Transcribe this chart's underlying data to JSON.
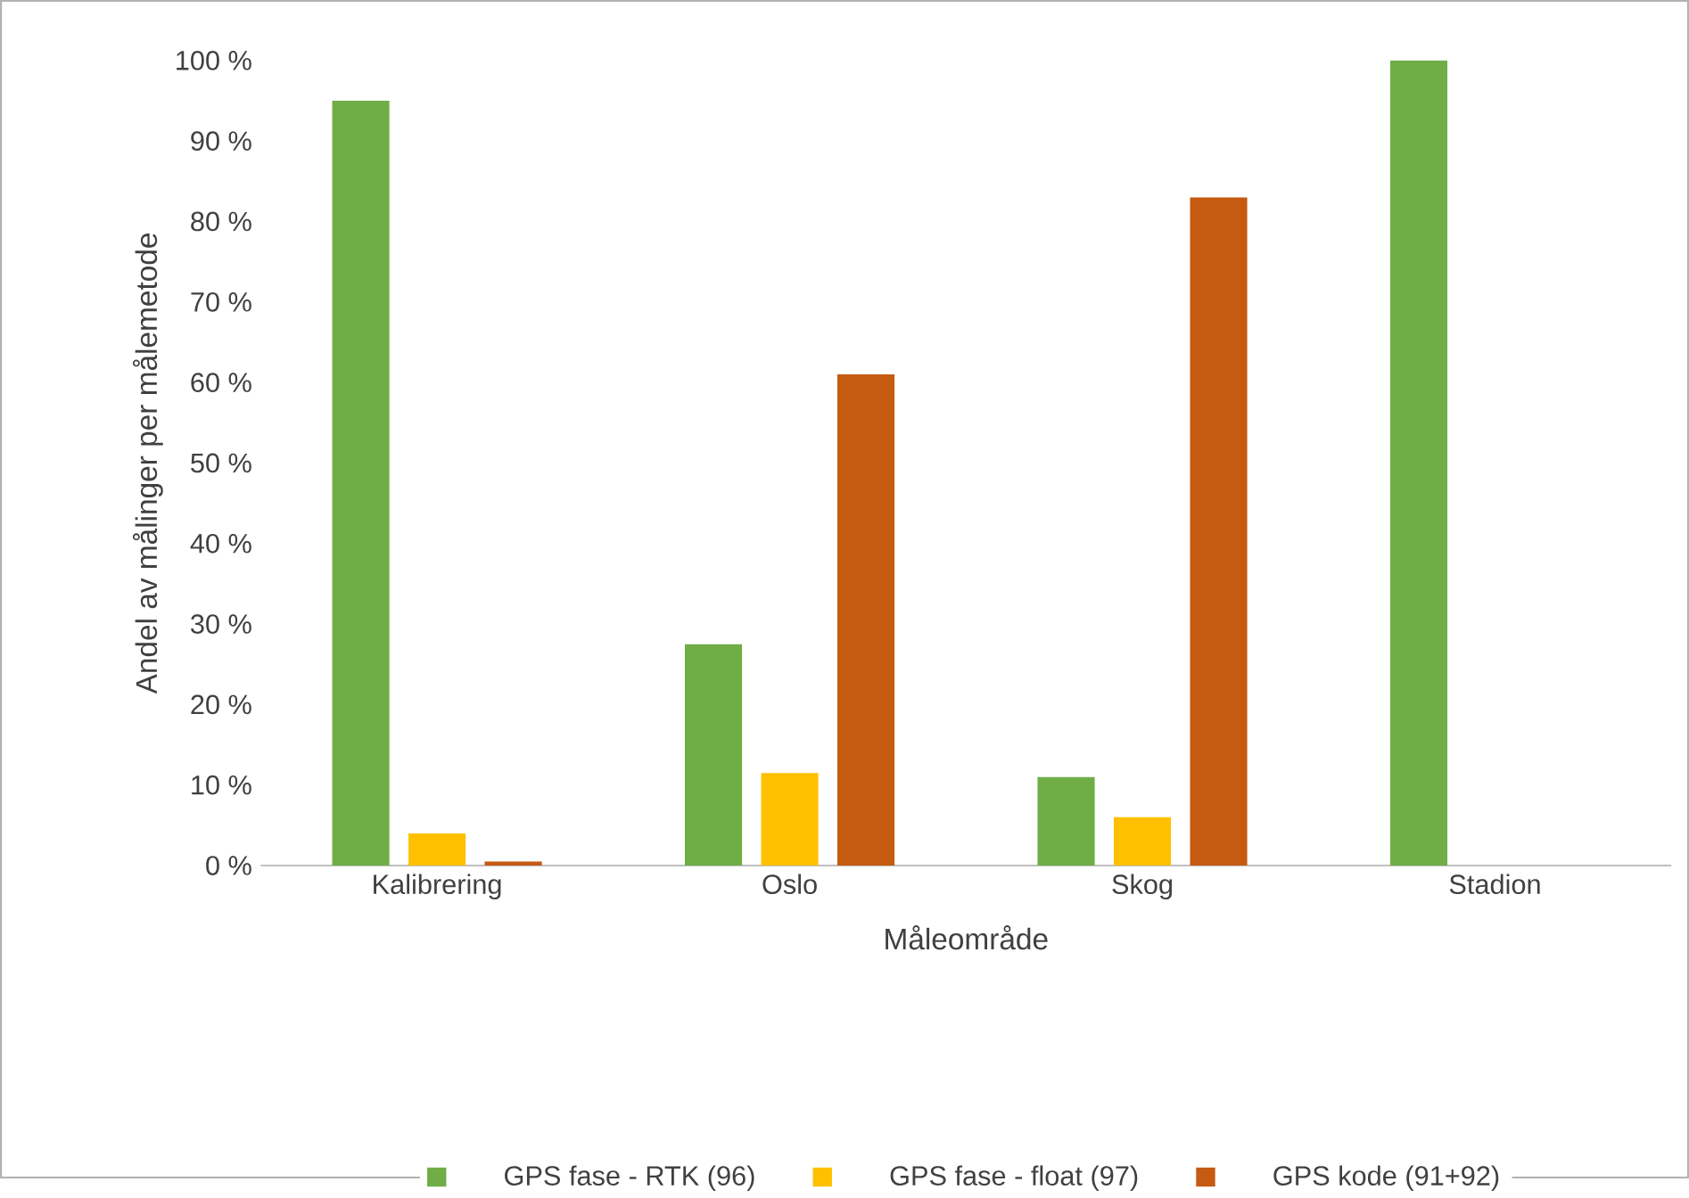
{
  "chart_data": {
    "type": "bar",
    "xlabel": "Måleområde",
    "ylabel": "Andel av målinger per målemetode",
    "categories": [
      "Kalibrering",
      "Oslo",
      "Skog",
      "Stadion"
    ],
    "series": [
      {
        "name": "GPS fase - RTK (96)",
        "color": "#70ad47",
        "values": [
          95,
          27.5,
          11,
          100
        ]
      },
      {
        "name": "GPS fase - float (97)",
        "color": "#ffc000",
        "values": [
          4,
          11.5,
          6,
          0
        ]
      },
      {
        "name": "GPS kode (91+92)",
        "color": "#c55a11",
        "values": [
          0.5,
          61,
          83,
          0
        ]
      }
    ],
    "ylim": [
      0,
      100
    ],
    "yticks": [
      {
        "value": 0,
        "label": "0 %"
      },
      {
        "value": 10,
        "label": "10 %"
      },
      {
        "value": 20,
        "label": "20 %"
      },
      {
        "value": 30,
        "label": "30 %"
      },
      {
        "value": 40,
        "label": "40 %"
      },
      {
        "value": 50,
        "label": "50 %"
      },
      {
        "value": 60,
        "label": "60 %"
      },
      {
        "value": 70,
        "label": "70 %"
      },
      {
        "value": 80,
        "label": "80 %"
      },
      {
        "value": 90,
        "label": "90 %"
      },
      {
        "value": 100,
        "label": "100 %"
      }
    ],
    "grid": false,
    "legend": "bottom"
  }
}
